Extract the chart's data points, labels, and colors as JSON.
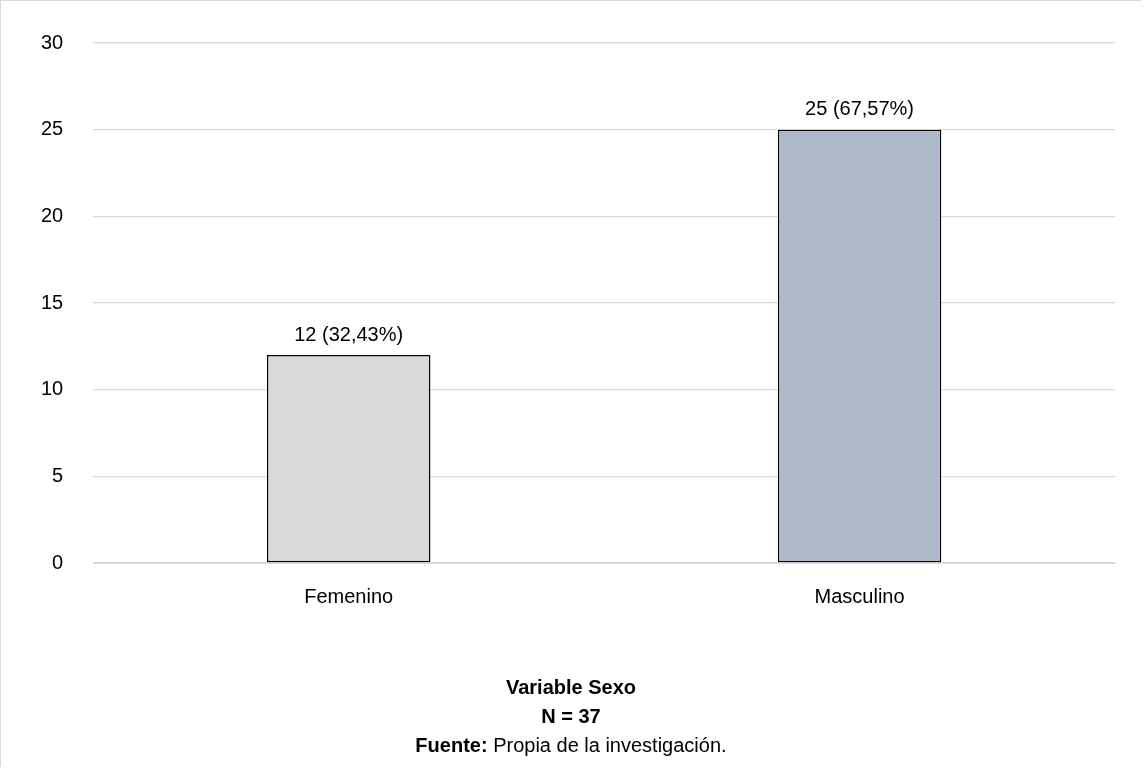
{
  "chart_data": {
    "type": "bar",
    "categories": [
      "Femenino",
      "Masculino"
    ],
    "values": [
      12,
      25
    ],
    "colors": [
      "#d9d9d9",
      "#adb9ca"
    ],
    "value_labels": [
      "12 (32,43%)",
      "25 (67,57%)"
    ],
    "ylim": [
      0,
      30
    ],
    "yticks": [
      0,
      5,
      10,
      15,
      20,
      25,
      30
    ],
    "grid": "y",
    "legend": false,
    "xlabel": "Variable Sexo",
    "annotations": [
      "N = 37",
      "Fuente: Propia de la investigación."
    ]
  }
}
